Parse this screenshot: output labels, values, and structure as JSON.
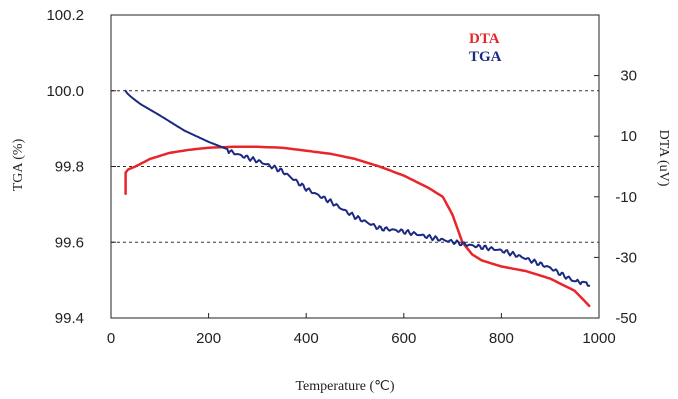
{
  "chart_data": {
    "type": "line",
    "title": "",
    "xlabel": "Temperature (℃)",
    "ylabel_left": "TGA  (%)",
    "ylabel_right": "DTA (uV)",
    "xlim": [
      0,
      1000
    ],
    "ylim_left": [
      99.4,
      100.2
    ],
    "ylim_right": [
      -50,
      50
    ],
    "x_ticks": [
      "0",
      "200",
      "400",
      "600",
      "800",
      "1000"
    ],
    "y_left_ticks": [
      "99.4",
      "99.6",
      "99.8",
      "100.0",
      "100.2"
    ],
    "y_right_ticks": [
      "-50",
      "-30",
      "-10",
      "10",
      "30"
    ],
    "grid": "dashed horizontal at 99.6, 99.8, 100.0",
    "legend_placement": "top-right",
    "series": [
      {
        "name": "DTA",
        "axis": "right",
        "color": "#e8262a",
        "x": [
          30,
          30,
          35,
          50,
          80,
          120,
          160,
          200,
          250,
          300,
          350,
          400,
          450,
          500,
          550,
          600,
          650,
          680,
          700,
          720,
          740,
          760,
          800,
          850,
          900,
          950,
          980
        ],
        "y": [
          -9,
          -2,
          -1,
          0,
          2.5,
          4.5,
          5.5,
          6.2,
          6.5,
          6.5,
          6.2,
          5.2,
          4.2,
          2.5,
          0,
          -3,
          -7,
          -10,
          -16,
          -25,
          -29,
          -31,
          -33,
          -34.5,
          -37,
          -41,
          -46
        ]
      },
      {
        "name": "TGA",
        "axis": "left",
        "color": "#1b2a80",
        "x": [
          30,
          32,
          40,
          60,
          100,
          150,
          200,
          250,
          300,
          350,
          400,
          450,
          500,
          550,
          600,
          650,
          700,
          750,
          800,
          850,
          900,
          950,
          980
        ],
        "y": [
          100.0,
          99.995,
          99.985,
          99.965,
          99.935,
          99.895,
          99.865,
          99.84,
          99.815,
          99.785,
          99.74,
          99.71,
          99.67,
          99.635,
          99.625,
          99.615,
          99.605,
          99.59,
          99.575,
          99.555,
          99.535,
          99.5,
          99.485
        ]
      }
    ]
  }
}
